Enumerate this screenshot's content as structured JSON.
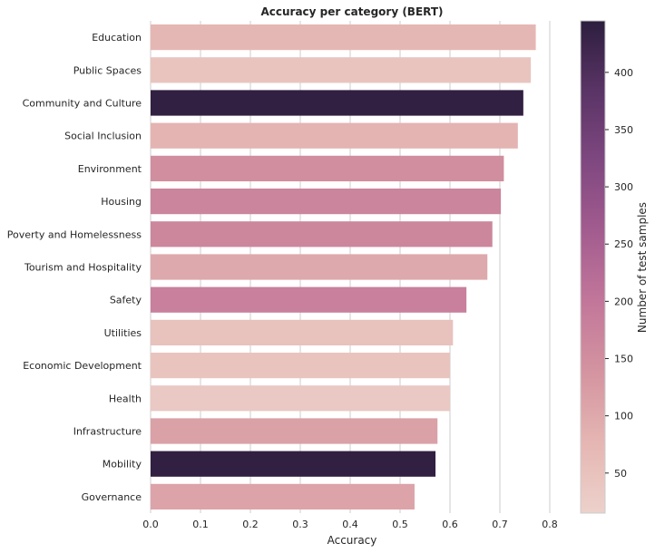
{
  "chart_data": {
    "type": "bar",
    "orientation": "horizontal",
    "title": "Accuracy per category (BERT)",
    "xlabel": "Accuracy",
    "ylabel": "",
    "xlim": [
      0,
      0.8
    ],
    "xticks": [
      "0.0",
      "0.1",
      "0.2",
      "0.3",
      "0.4",
      "0.5",
      "0.6",
      "0.7",
      "0.8"
    ],
    "grid": "vertical",
    "categories": [
      "Education",
      "Public Spaces",
      "Community and Culture",
      "Social Inclusion",
      "Environment",
      "Housing",
      "Poverty and Homelessness",
      "Tourism and Hospitality",
      "Safety",
      "Utilities",
      "Economic Development",
      "Health",
      "Infrastructure",
      "Mobility",
      "Governance"
    ],
    "values": [
      0.772,
      0.762,
      0.747,
      0.736,
      0.708,
      0.702,
      0.685,
      0.675,
      0.633,
      0.606,
      0.6,
      0.6,
      0.575,
      0.571,
      0.529
    ],
    "test_samples": [
      75,
      45,
      440,
      80,
      150,
      170,
      165,
      100,
      180,
      50,
      45,
      35,
      115,
      440,
      110
    ],
    "colorbar": {
      "label": "Number of test samples",
      "range": [
        15,
        445
      ],
      "ticks": [
        50,
        100,
        150,
        200,
        250,
        300,
        350,
        400
      ],
      "colors": [
        "#edd1cb",
        "#e5b6b3",
        "#d494a0",
        "#c2779a",
        "#a35c8f",
        "#7f4880",
        "#5a3466",
        "#2d1e3e"
      ]
    }
  }
}
